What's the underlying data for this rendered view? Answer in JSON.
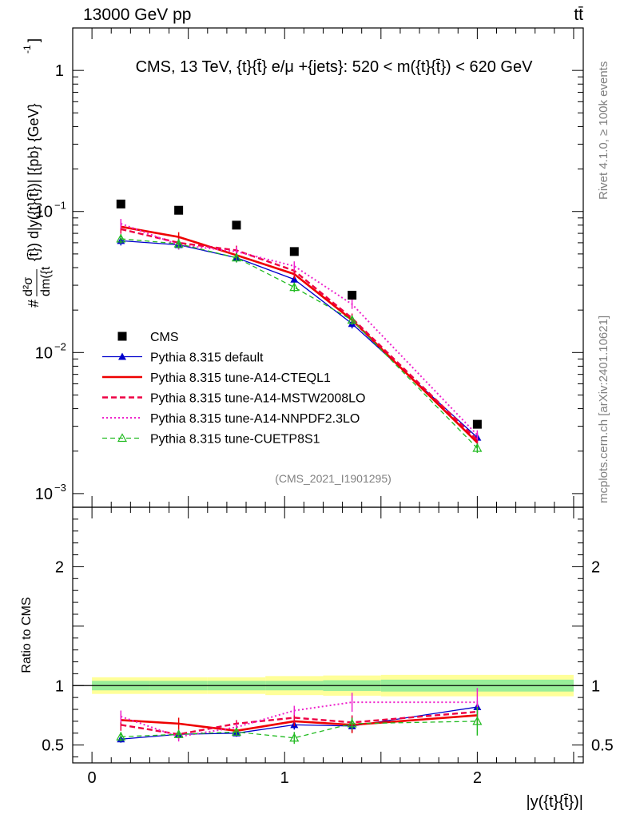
{
  "header": {
    "beam": "13000 GeV pp",
    "process": "tt̄"
  },
  "side_labels": {
    "rivet": "Rivet 4.1.0, ≥ 100k events",
    "mcplots": "mcplots.cern.ch [arXiv:2401.10621]"
  },
  "colors": {
    "cms": "#000000",
    "default": "#0000cc",
    "cteql1": "#ee0000",
    "mstw": "#ee0044",
    "nnpdf": "#ee22cc",
    "cuetp8s1": "#22bb22",
    "band_outer": "#ffff99",
    "band_inner": "#99ee99"
  },
  "chart_data": [
    {
      "type": "line",
      "scale": "log",
      "title": "CMS, 13 TeV, {t}{t̄} e/μ +{jets}: 520 < m({t}{t̄}) < 620 GeV",
      "ylabel_top": "d²σ",
      "ylabel_bottom": "dm({t",
      "ylabel_rest": "{t̄}) d|y({t}{t̄})| [{pb} {GeV}",
      "ylabel_hash": "#",
      "ylabel_exp": "-1",
      "ylabel_close": "]",
      "ylim": [
        0.0008,
        2.0
      ],
      "xlim": [
        -0.1,
        2.55
      ],
      "y_ticks": [
        {
          "value": 1,
          "label": "1",
          "exp": ""
        },
        {
          "value": 0.1,
          "label": "10",
          "exp": "−1"
        },
        {
          "value": 0.01,
          "label": "10",
          "exp": "−2"
        },
        {
          "value": 0.001,
          "label": "10",
          "exp": "−3"
        }
      ],
      "watermark": "(CMS_2021_I1901295)",
      "x": [
        0.15,
        0.45,
        0.75,
        1.05,
        1.35,
        2.0
      ],
      "series": [
        {
          "key": "cms",
          "name": "CMS",
          "style": "marker",
          "values": [
            0.113,
            0.102,
            0.08,
            0.052,
            0.0255,
            0.0031
          ]
        },
        {
          "key": "default",
          "name": "Pythia 8.315 default",
          "style": "solid-triangle",
          "values": [
            0.062,
            0.058,
            0.047,
            0.033,
            0.016,
            0.0025
          ]
        },
        {
          "key": "cteql1",
          "name": "Pythia 8.315 tune-A14-CTEQL1",
          "style": "thick",
          "values": [
            0.078,
            0.066,
            0.049,
            0.036,
            0.017,
            0.0023
          ]
        },
        {
          "key": "mstw",
          "name": "Pythia 8.315 tune-A14-MSTW2008LO",
          "style": "dashed",
          "values": [
            0.075,
            0.06,
            0.053,
            0.038,
            0.0175,
            0.0024
          ]
        },
        {
          "key": "nnpdf",
          "name": "Pythia 8.315 tune-A14-NNPDF2.3LO",
          "style": "dotted",
          "values": [
            0.082,
            0.058,
            0.052,
            0.041,
            0.022,
            0.0026
          ]
        },
        {
          "key": "cuetp8s1",
          "name": "Pythia 8.315 tune-CUETP8S1",
          "style": "dashed-open-triangle",
          "values": [
            0.064,
            0.059,
            0.047,
            0.029,
            0.017,
            0.0021
          ]
        }
      ]
    },
    {
      "type": "line",
      "scale": "linear",
      "ylabel": "Ratio to CMS",
      "xlabel": "|y({t}{t̄})|",
      "ylim": [
        0.35,
        2.5
      ],
      "xlim": [
        -0.1,
        2.55
      ],
      "y_ticks": [
        {
          "value": 0.5,
          "label": "0.5"
        },
        {
          "value": 1,
          "label": "1"
        },
        {
          "value": 2,
          "label": "2"
        }
      ],
      "x_ticks": [
        {
          "value": 0,
          "label": "0"
        },
        {
          "value": 1,
          "label": "1"
        },
        {
          "value": 2,
          "label": "2"
        }
      ],
      "x": [
        0.15,
        0.45,
        0.75,
        1.05,
        1.35,
        2.0
      ],
      "bands": [
        {
          "x0": 0.0,
          "x1": 0.3,
          "outer": [
            0.93,
            1.07
          ],
          "inner": [
            0.96,
            1.04
          ]
        },
        {
          "x0": 0.3,
          "x1": 0.6,
          "outer": [
            0.93,
            1.07
          ],
          "inner": [
            0.96,
            1.04
          ]
        },
        {
          "x0": 0.6,
          "x1": 0.9,
          "outer": [
            0.93,
            1.07
          ],
          "inner": [
            0.96,
            1.04
          ]
        },
        {
          "x0": 0.9,
          "x1": 1.2,
          "outer": [
            0.92,
            1.08
          ],
          "inner": [
            0.96,
            1.04
          ]
        },
        {
          "x0": 1.2,
          "x1": 1.5,
          "outer": [
            0.915,
            1.085
          ],
          "inner": [
            0.955,
            1.045
          ]
        },
        {
          "x0": 1.5,
          "x1": 2.5,
          "outer": [
            0.91,
            1.09
          ],
          "inner": [
            0.95,
            1.05
          ]
        }
      ],
      "series": [
        {
          "key": "default",
          "values": [
            0.55,
            0.59,
            0.6,
            0.67,
            0.66,
            0.82
          ],
          "err": [
            0.03,
            0.03,
            0.03,
            0.04,
            0.05,
            0.05
          ]
        },
        {
          "key": "cteql1",
          "values": [
            0.71,
            0.68,
            0.62,
            0.7,
            0.67,
            0.75
          ],
          "err": [
            0.05,
            0.05,
            0.03,
            0.04,
            0.07,
            0.07
          ]
        },
        {
          "key": "mstw",
          "values": [
            0.67,
            0.59,
            0.68,
            0.73,
            0.69,
            0.78
          ],
          "err": [
            0.05,
            0.04,
            0.03,
            0.04,
            0.06,
            0.07
          ]
        },
        {
          "key": "nnpdf",
          "values": [
            0.74,
            0.57,
            0.65,
            0.79,
            0.86,
            0.86
          ],
          "err": [
            0.05,
            0.04,
            0.03,
            0.04,
            0.08,
            0.12
          ]
        },
        {
          "key": "cuetp8s1",
          "values": [
            0.57,
            0.59,
            0.61,
            0.56,
            0.68,
            0.7
          ],
          "err": [
            0.04,
            0.03,
            0.03,
            0.05,
            0.05,
            0.12
          ]
        }
      ]
    }
  ]
}
